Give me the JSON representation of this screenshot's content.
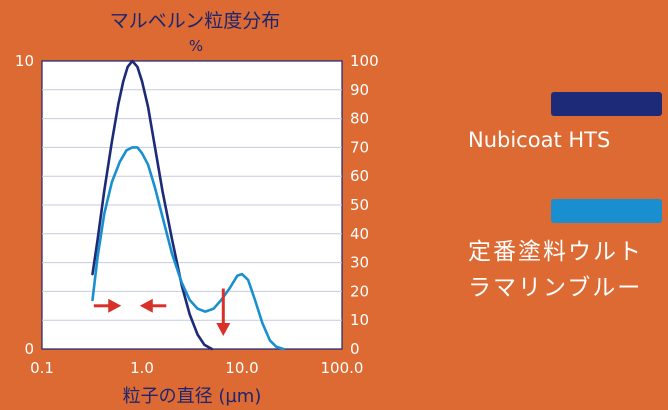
{
  "chart_data": {
    "type": "line",
    "title": "マルベルン粒度分布",
    "y2_unit": "%",
    "xlabel": "粒子の直径 (µm)",
    "x_scale": "log",
    "x_ticks": [
      "0.1",
      "1.0",
      "10.0",
      "100.0"
    ],
    "x_tick_values": [
      0.1,
      1.0,
      10.0,
      100.0
    ],
    "xlim": [
      0.1,
      100.0
    ],
    "y_left_ticks": [
      "0",
      "10"
    ],
    "ylim_left": [
      0,
      10
    ],
    "y_right_ticks": [
      "0",
      "10",
      "20",
      "30",
      "40",
      "50",
      "60",
      "70",
      "80",
      "90",
      "100"
    ],
    "ylim_right": [
      0,
      100
    ],
    "grid": true,
    "legend_position": "right",
    "series": [
      {
        "name": "Nubicoat HTS",
        "color": "#1c2a78",
        "x": [
          0.32,
          0.36,
          0.42,
          0.5,
          0.58,
          0.65,
          0.72,
          0.8,
          0.9,
          1.0,
          1.15,
          1.35,
          1.6,
          2.0,
          2.5,
          3.0,
          3.6,
          4.2,
          5.0
        ],
        "y": [
          26,
          38,
          55,
          72,
          85,
          93,
          98,
          100,
          98,
          93,
          84,
          70,
          55,
          38,
          22,
          12,
          5,
          1.5,
          0
        ]
      },
      {
        "name": "定番塗料ウルトラマリンブルー",
        "color": "#1a8fd0",
        "x": [
          0.32,
          0.36,
          0.42,
          0.5,
          0.6,
          0.7,
          0.8,
          0.9,
          1.0,
          1.15,
          1.35,
          1.6,
          2.0,
          2.5,
          3.0,
          3.6,
          4.3,
          5.2,
          6.2,
          7.5,
          9.0,
          10.0,
          11.5,
          13.5,
          16.0,
          19.0,
          22.0,
          26.0
        ],
        "y": [
          17,
          32,
          47,
          58,
          65,
          69,
          70,
          70,
          68,
          64,
          56,
          46,
          33,
          23,
          17,
          14,
          13,
          14,
          17,
          21,
          25.5,
          26,
          24,
          17,
          9,
          3,
          0.8,
          0
        ]
      }
    ],
    "annotations": [
      {
        "type": "arrow",
        "direction": "right",
        "color": "#d9302a",
        "from_x": 0.33,
        "to_x": 0.62,
        "y": 15
      },
      {
        "type": "arrow",
        "direction": "left",
        "color": "#d9302a",
        "from_x": 1.75,
        "to_x": 0.95,
        "y": 15
      },
      {
        "type": "arrow",
        "direction": "down",
        "color": "#d9302a",
        "x": 6.5,
        "from_y": 21,
        "to_y": 4.5
      }
    ]
  },
  "legend": [
    {
      "label": "Nubicoat HTS",
      "color": "#1c2a78"
    },
    {
      "label_line1": "定番塗料ウルト",
      "label_line2": "ラマリンブルー",
      "color": "#1a8fd0"
    }
  ]
}
